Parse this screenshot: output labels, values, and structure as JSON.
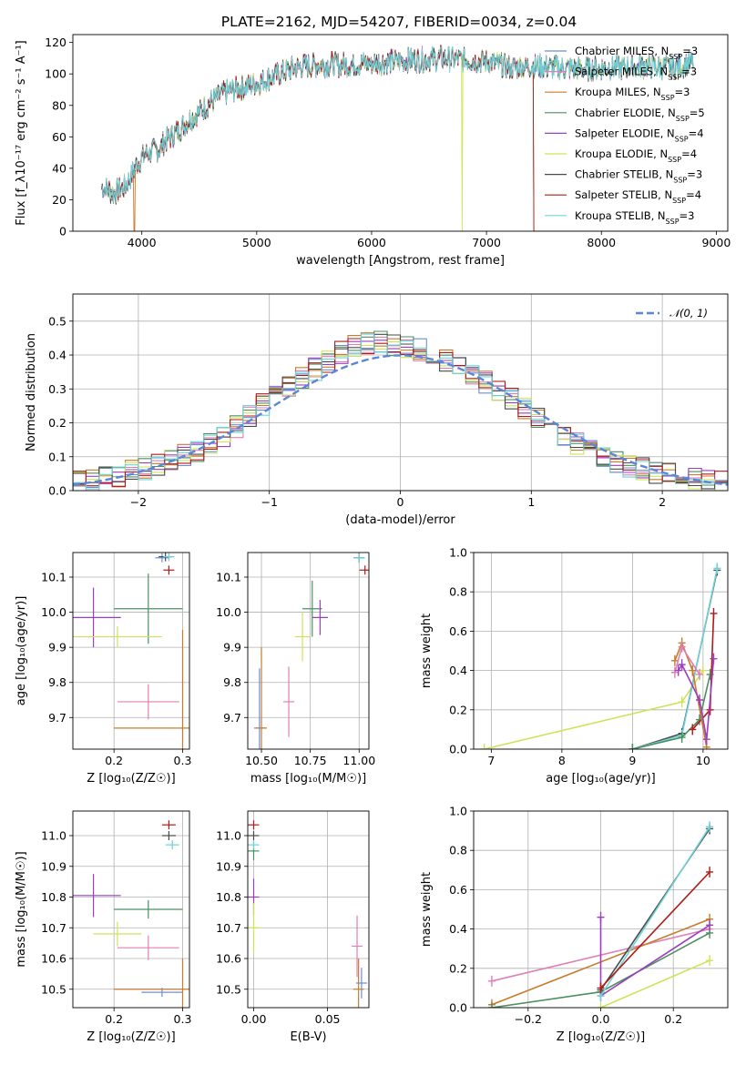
{
  "figure": {
    "title": "PLATE=2162, MJD=54207, FIBERID=0034, z=0.04"
  },
  "models": [
    {
      "name": "Chabrier MILES",
      "nssp": "3",
      "color": "#6a8fd8"
    },
    {
      "name": "Salpeter MILES",
      "nssp": "3",
      "color": "#e07fb6"
    },
    {
      "name": "Kroupa MILES",
      "nssp": "3",
      "color": "#c87b2c"
    },
    {
      "name": "Chabrier ELODIE",
      "nssp": "5",
      "color": "#4d8f5f"
    },
    {
      "name": "Salpeter ELODIE",
      "nssp": "4",
      "color": "#9a3fbf"
    },
    {
      "name": "Kroupa ELODIE",
      "nssp": "4",
      "color": "#cfe35a"
    },
    {
      "name": "Chabrier STELIB",
      "nssp": "3",
      "color": "#4a4a4a"
    },
    {
      "name": "Salpeter STELIB",
      "nssp": "4",
      "color": "#b01a1a"
    },
    {
      "name": "Kroupa STELIB",
      "nssp": "3",
      "color": "#6ed3d8"
    }
  ],
  "chart_data": [
    {
      "id": "spectrum",
      "type": "line",
      "title": "PLATE=2162, MJD=54207, FIBERID=0034, z=0.04",
      "xlabel": "wavelength [Angstrom, rest frame]",
      "ylabel": "Flux [f_λ10⁻¹⁷ erg cm⁻² s⁻¹ A⁻¹]",
      "xlim": [
        3400,
        9100
      ],
      "ylim": [
        0,
        125
      ],
      "xticks": [
        "4000",
        "5000",
        "6000",
        "7000",
        "8000",
        "9000"
      ],
      "yticks": [
        "0",
        "20",
        "40",
        "60",
        "80",
        "100",
        "120"
      ],
      "x_range": [
        3650,
        8800
      ],
      "continuum": [
        [
          3650,
          28
        ],
        [
          3700,
          27
        ],
        [
          3750,
          24
        ],
        [
          3800,
          26
        ],
        [
          3850,
          28
        ],
        [
          3900,
          34
        ],
        [
          3950,
          42
        ],
        [
          4000,
          47
        ],
        [
          4050,
          50
        ],
        [
          4100,
          51
        ],
        [
          4150,
          52
        ],
        [
          4200,
          57
        ],
        [
          4300,
          63
        ],
        [
          4400,
          70
        ],
        [
          4500,
          76
        ],
        [
          4600,
          82
        ],
        [
          4700,
          87
        ],
        [
          4800,
          90
        ],
        [
          4900,
          92
        ],
        [
          5000,
          94
        ],
        [
          5100,
          97
        ],
        [
          5200,
          100
        ],
        [
          5300,
          103
        ],
        [
          5400,
          105
        ],
        [
          5600,
          106
        ],
        [
          5800,
          106
        ],
        [
          6000,
          107
        ],
        [
          6200,
          108
        ],
        [
          6400,
          109
        ],
        [
          6600,
          110
        ],
        [
          6800,
          109
        ],
        [
          7000,
          108
        ],
        [
          7200,
          104
        ],
        [
          7400,
          105
        ],
        [
          7600,
          104
        ],
        [
          7800,
          103
        ],
        [
          8000,
          104
        ],
        [
          8200,
          104
        ],
        [
          8400,
          105
        ],
        [
          8600,
          104
        ],
        [
          8800,
          107
        ]
      ],
      "dips": [
        [
          3935,
          0
        ],
        [
          6790,
          0
        ],
        [
          7410,
          0
        ]
      ],
      "series_names_from_models": true
    },
    {
      "id": "residuals",
      "type": "bar",
      "xlabel": "(data-model)/error",
      "ylabel": "Normed distribution",
      "xlim": [
        -2.5,
        2.5
      ],
      "ylim": [
        0,
        0.58
      ],
      "xticks": [
        "−2",
        "−1",
        "0",
        "1",
        "2"
      ],
      "yticks": [
        "0.0",
        "0.1",
        "0.2",
        "0.3",
        "0.4",
        "0.5"
      ],
      "gaussian_label": "𝒩(0, 1)",
      "gaussian_color": "#5b85d6",
      "bin_width": 0.1,
      "profile": [
        [
          -2.5,
          0.03
        ],
        [
          -2.2,
          0.04
        ],
        [
          -2.0,
          0.06
        ],
        [
          -1.8,
          0.08
        ],
        [
          -1.6,
          0.11
        ],
        [
          -1.4,
          0.15
        ],
        [
          -1.2,
          0.2
        ],
        [
          -1.0,
          0.27
        ],
        [
          -0.8,
          0.32
        ],
        [
          -0.6,
          0.37
        ],
        [
          -0.4,
          0.42
        ],
        [
          -0.2,
          0.44
        ],
        [
          0.0,
          0.43
        ],
        [
          0.2,
          0.41
        ],
        [
          0.4,
          0.38
        ],
        [
          0.6,
          0.33
        ],
        [
          0.8,
          0.28
        ],
        [
          1.0,
          0.23
        ],
        [
          1.2,
          0.18
        ],
        [
          1.4,
          0.13
        ],
        [
          1.6,
          0.09
        ],
        [
          1.8,
          0.07
        ],
        [
          2.0,
          0.05
        ],
        [
          2.2,
          0.04
        ],
        [
          2.5,
          0.02
        ]
      ]
    },
    {
      "id": "z-age",
      "type": "scatter",
      "xlabel": "Z [log₁₀(Z/Z☉)]",
      "ylabel": "age  [log₁₀(age/yr)]",
      "xlim": [
        0.14,
        0.31
      ],
      "ylim": [
        9.61,
        10.17
      ],
      "xticks": [
        0.2,
        0.3
      ],
      "yticks": [
        9.7,
        9.8,
        9.9,
        10.0,
        10.1
      ],
      "points": [
        {
          "model": 0,
          "x": 0.27,
          "y": 10.155,
          "xe": 0.01,
          "ye": 0.0
        },
        {
          "model": 1,
          "x": 0.25,
          "y": 9.745,
          "xe": 0.045,
          "ye": 0.05
        },
        {
          "model": 2,
          "x": 0.3,
          "y": 9.67,
          "xe": 0.1,
          "ye": 0.28
        },
        {
          "model": 3,
          "x": 0.25,
          "y": 10.01,
          "xe": 0.05,
          "ye": 0.1
        },
        {
          "model": 4,
          "x": 0.17,
          "y": 9.985,
          "xe": 0.04,
          "ye": 0.085
        },
        {
          "model": 5,
          "x": 0.205,
          "y": 9.93,
          "xe": 0.065,
          "ye": 0.03
        },
        {
          "model": 6,
          "x": 0.275,
          "y": 10.158,
          "xe": 0.01,
          "ye": 0.0
        },
        {
          "model": 7,
          "x": 0.28,
          "y": 10.12,
          "xe": 0.008,
          "ye": 0.0
        },
        {
          "model": 8,
          "x": 0.28,
          "y": 10.158,
          "xe": 0.008,
          "ye": 0.0
        }
      ]
    },
    {
      "id": "mass-age",
      "type": "scatter",
      "xlabel": "mass [log₁₀(M/M☉)]",
      "ylabel": "",
      "xlim": [
        10.43,
        11.05
      ],
      "ylim": [
        9.61,
        10.17
      ],
      "xticks": [
        10.5,
        10.75,
        11.0
      ],
      "yticks": [
        9.7,
        9.8,
        9.9,
        10.0,
        10.1
      ],
      "points": [
        {
          "model": 0,
          "x": 10.49,
          "y": 9.67,
          "xe": 0.0,
          "ye": 0.17
        },
        {
          "model": 1,
          "x": 10.64,
          "y": 9.745,
          "xe": 0.02,
          "ye": 0.1
        },
        {
          "model": 2,
          "x": 10.5,
          "y": 9.67,
          "xe": 0.02,
          "ye": 0.23
        },
        {
          "model": 3,
          "x": 10.76,
          "y": 10.01,
          "xe": 0.05,
          "ye": 0.08
        },
        {
          "model": 4,
          "x": 10.8,
          "y": 9.985,
          "xe": 0.04,
          "ye": 0.05
        },
        {
          "model": 5,
          "x": 10.71,
          "y": 9.93,
          "xe": 0.04,
          "ye": 0.07
        },
        {
          "model": 6,
          "x": 11.0,
          "y": 10.155,
          "xe": 0.0,
          "ye": 0.0
        },
        {
          "model": 7,
          "x": 11.03,
          "y": 10.12,
          "xe": 0.0,
          "ye": 0.0
        },
        {
          "model": 8,
          "x": 11.0,
          "y": 10.155,
          "xe": 0.0,
          "ye": 0.0
        }
      ]
    },
    {
      "id": "age-weight",
      "type": "line",
      "xlabel": "age  [log₁₀(age/yr)]",
      "ylabel": "mass weight",
      "xlim": [
        6.75,
        10.35
      ],
      "ylim": [
        0,
        1
      ],
      "xticks": [
        7,
        8,
        9,
        10
      ],
      "yticks": [
        0.0,
        0.2,
        0.4,
        0.6,
        0.8,
        1.0
      ],
      "series": [
        {
          "model": 5,
          "x": [
            6.9,
            9.7,
            10.0
          ],
          "y": [
            0.0,
            0.24,
            0.4
          ]
        },
        {
          "model": 6,
          "x": [
            9.0,
            9.7,
            10.2
          ],
          "y": [
            0.0,
            0.08,
            0.91
          ]
        },
        {
          "model": 8,
          "x": [
            9.0,
            9.7,
            10.2
          ],
          "y": [
            0.0,
            0.07,
            0.92
          ]
        },
        {
          "model": 3,
          "x": [
            9.0,
            9.7,
            9.95,
            10.1
          ],
          "y": [
            0.0,
            0.06,
            0.15,
            0.38
          ]
        },
        {
          "model": 7,
          "x": [
            9.85,
            10.1,
            10.15
          ],
          "y": [
            0.1,
            0.2,
            0.69
          ]
        },
        {
          "model": 2,
          "x": [
            9.6,
            9.7,
            9.85,
            10.05
          ],
          "y": [
            0.45,
            0.54,
            0.4,
            0.01
          ]
        },
        {
          "model": 1,
          "x": [
            9.6,
            9.7,
            9.95
          ],
          "y": [
            0.39,
            0.52,
            0.38
          ]
        },
        {
          "model": 4,
          "x": [
            9.65,
            9.7,
            9.95,
            10.05,
            10.15
          ],
          "y": [
            0.4,
            0.43,
            0.25,
            0.05,
            0.46
          ]
        }
      ]
    },
    {
      "id": "z-mass",
      "type": "scatter",
      "xlabel": "Z [log₁₀(Z/Z☉)]",
      "ylabel": "mass [log₁₀(M/M☉)]",
      "xlim": [
        0.14,
        0.31
      ],
      "ylim": [
        10.44,
        11.08
      ],
      "xticks": [
        0.2,
        0.3
      ],
      "yticks": [
        10.5,
        10.6,
        10.7,
        10.8,
        10.9,
        11.0
      ],
      "points": [
        {
          "model": 0,
          "x": 0.27,
          "y": 10.49,
          "xe": 0.03,
          "ye": 0.0
        },
        {
          "model": 1,
          "x": 0.25,
          "y": 10.635,
          "xe": 0.045,
          "ye": 0.04
        },
        {
          "model": 2,
          "x": 0.3,
          "y": 10.5,
          "xe": 0.1,
          "ye": 0.1
        },
        {
          "model": 3,
          "x": 0.25,
          "y": 10.76,
          "xe": 0.05,
          "ye": 0.03
        },
        {
          "model": 4,
          "x": 0.17,
          "y": 10.805,
          "xe": 0.04,
          "ye": 0.07
        },
        {
          "model": 5,
          "x": 0.205,
          "y": 10.68,
          "xe": 0.035,
          "ye": 0.04
        },
        {
          "model": 6,
          "x": 0.28,
          "y": 11.0,
          "xe": 0.01,
          "ye": 0.0
        },
        {
          "model": 7,
          "x": 0.28,
          "y": 11.035,
          "xe": 0.01,
          "ye": 0.0
        },
        {
          "model": 8,
          "x": 0.285,
          "y": 10.97,
          "xe": 0.01,
          "ye": 0.0
        }
      ]
    },
    {
      "id": "ebv-mass",
      "type": "scatter",
      "xlabel": "E(B-V)",
      "ylabel": "",
      "xlim": [
        -0.004,
        0.078
      ],
      "ylim": [
        10.44,
        11.08
      ],
      "xticks": [
        "0.00",
        "0.05"
      ],
      "yticks": [
        10.5,
        10.6,
        10.7,
        10.8,
        10.9,
        11.0
      ],
      "points": [
        {
          "model": 0,
          "x": 0.073,
          "y": 10.52,
          "xe": 0.0,
          "ye": 0.05
        },
        {
          "model": 1,
          "x": 0.07,
          "y": 10.64,
          "xe": 0.0,
          "ye": 0.1
        },
        {
          "model": 2,
          "x": 0.071,
          "y": 10.5,
          "xe": 0.0,
          "ye": 0.1
        },
        {
          "model": 3,
          "x": 0.0,
          "y": 10.95,
          "xe": 0.0,
          "ye": 0.03
        },
        {
          "model": 4,
          "x": 0.0,
          "y": 10.8,
          "xe": 0.0,
          "ye": 0.06
        },
        {
          "model": 5,
          "x": 0.0,
          "y": 10.7,
          "xe": 0.0,
          "ye": 0.08
        },
        {
          "model": 6,
          "x": 0.0,
          "y": 11.0,
          "xe": 0.0,
          "ye": 0.0
        },
        {
          "model": 7,
          "x": 0.0,
          "y": 11.035,
          "xe": 0.0,
          "ye": 0.0
        },
        {
          "model": 8,
          "x": 0.0,
          "y": 10.97,
          "xe": 0.0,
          "ye": 0.0
        }
      ]
    },
    {
      "id": "z-weight",
      "type": "line",
      "xlabel": "Z [log₁₀(Z/Z☉)]",
      "ylabel": "mass weight",
      "xlim": [
        -0.35,
        0.35
      ],
      "ylim": [
        0,
        1
      ],
      "xticks": [
        "−0.2",
        "0.0",
        "0.2"
      ],
      "yticks": [
        0.0,
        0.2,
        0.4,
        0.6,
        0.8,
        1.0
      ],
      "series": [
        {
          "model": 1,
          "x": [
            -0.3,
            0.3
          ],
          "y": [
            0.135,
            0.4
          ]
        },
        {
          "model": 2,
          "x": [
            -0.3,
            0.3
          ],
          "y": [
            0.015,
            0.45
          ]
        },
        {
          "model": 5,
          "x": [
            0.0,
            0.3
          ],
          "y": [
            0.0,
            0.24
          ]
        },
        {
          "model": 3,
          "x": [
            -0.3,
            0.0,
            0.3
          ],
          "y": [
            0.0,
            0.08,
            0.38
          ]
        },
        {
          "model": 4,
          "x": [
            0.0,
            0.0,
            0.3
          ],
          "y": [
            0.46,
            0.06,
            0.42
          ]
        },
        {
          "model": 6,
          "x": [
            0.0,
            0.3
          ],
          "y": [
            0.09,
            0.91
          ]
        },
        {
          "model": 8,
          "x": [
            0.0,
            0.3
          ],
          "y": [
            0.06,
            0.92
          ]
        },
        {
          "model": 7,
          "x": [
            0.0,
            0.3
          ],
          "y": [
            0.1,
            0.69
          ]
        }
      ]
    }
  ]
}
